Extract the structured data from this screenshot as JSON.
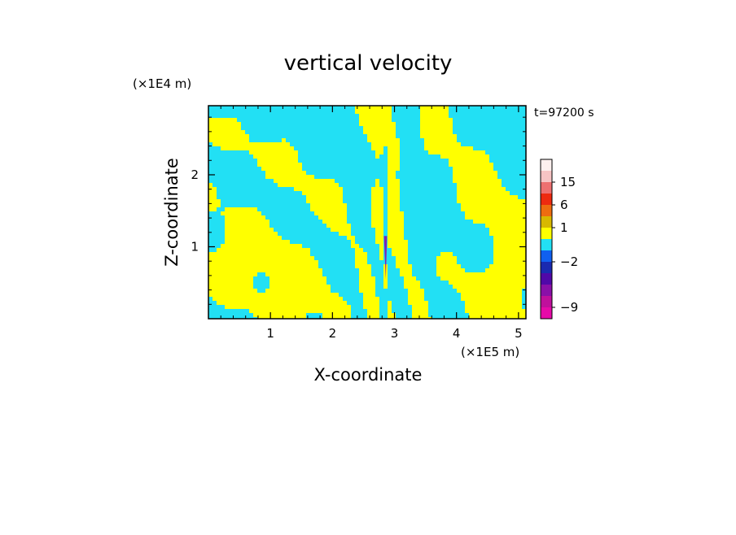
{
  "chart_data": {
    "type": "heatmap",
    "title": "vertical velocity",
    "xlabel": "X-coordinate",
    "ylabel": "Z-coordinate",
    "x_unit": "(×1E5 m)",
    "y_unit": "(×1E4 m)",
    "time_label": "t=97200 s",
    "xlim": [
      0,
      5.12
    ],
    "ylim": [
      0,
      2.96
    ],
    "x_ticks": [
      1,
      2,
      3,
      4,
      5
    ],
    "y_ticks": [
      1,
      2
    ],
    "colorbar": {
      "levels": [
        {
          "from": -11,
          "to": -9,
          "color": "#e60aa8"
        },
        {
          "from": -9,
          "to": -7,
          "color": "#c0109c"
        },
        {
          "from": -7,
          "to": -5,
          "color": "#8a10a8"
        },
        {
          "from": -5,
          "to": -3,
          "color": "#5008a8"
        },
        {
          "from": -3,
          "to": -2,
          "color": "#1a2ab0"
        },
        {
          "from": -2,
          "to": -1,
          "color": "#1060f0"
        },
        {
          "from": -1,
          "to": 0,
          "color": "#22e0f4"
        },
        {
          "from": 0,
          "to": 1,
          "color": "#ffff00"
        },
        {
          "from": 1,
          "to": 2,
          "color": "#d8b800"
        },
        {
          "from": 2,
          "to": 6,
          "color": "#ee6c10"
        },
        {
          "from": 6,
          "to": 10,
          "color": "#ee2a10"
        },
        {
          "from": 10,
          "to": 15,
          "color": "#ee7070"
        },
        {
          "from": 15,
          "to": 20,
          "color": "#f7c4c4"
        },
        {
          "from": 20,
          "to": 25,
          "color": "#fdf0ee"
        }
      ],
      "tick_labels": [
        "15",
        "6",
        "1",
        "−2",
        "−9"
      ],
      "tick_values": [
        15,
        6,
        1,
        -2,
        -9
      ]
    },
    "colors": {
      "negative": "#22e0f4",
      "positive": "#ffff00",
      "jet_core": "#8a10a8"
    }
  }
}
